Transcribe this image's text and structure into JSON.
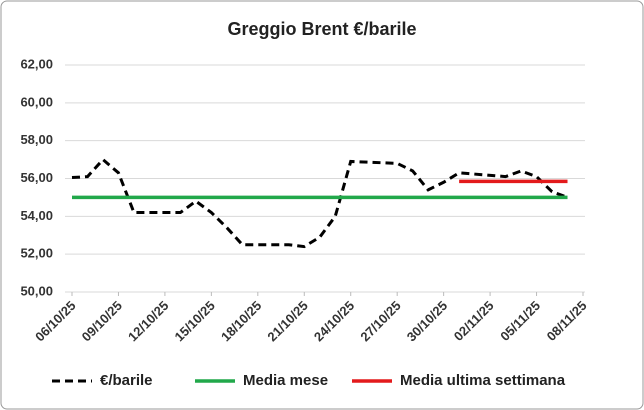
{
  "chart_data": {
    "type": "line",
    "title": "Greggio Brent €/barile",
    "x": [
      "06/10/25",
      "07/10/25",
      "08/10/25",
      "09/10/25",
      "10/10/25",
      "13/10/25",
      "14/10/25",
      "15/10/25",
      "16/10/25",
      "17/10/25",
      "20/10/25",
      "21/10/25",
      "22/10/25",
      "23/10/25",
      "24/10/25",
      "27/10/25",
      "28/10/25",
      "29/10/25",
      "30/10/25",
      "31/10/25",
      "03/11/25",
      "04/11/25",
      "05/11/25",
      "06/11/25",
      "07/11/25"
    ],
    "series": [
      {
        "name": "€/barile",
        "color": "#000000",
        "dashed": true,
        "values": [
          56.05,
          56.1,
          57.0,
          56.3,
          54.2,
          54.2,
          54.8,
          54.2,
          53.4,
          52.5,
          52.5,
          52.4,
          52.9,
          54.0,
          56.9,
          56.8,
          56.4,
          55.4,
          55.8,
          56.3,
          56.1,
          56.4,
          56.1,
          55.3,
          55.0
        ]
      },
      {
        "name": "Media mese",
        "color": "#21a84a",
        "values": [
          55.0,
          55.0,
          55.0,
          55.0,
          55.0,
          55.0,
          55.0,
          55.0,
          55.0,
          55.0,
          55.0,
          55.0,
          55.0,
          55.0,
          55.0,
          55.0,
          55.0,
          55.0,
          55.0,
          55.0,
          55.0,
          55.0,
          55.0,
          55.0,
          55.0
        ]
      },
      {
        "name": "Media ultima settimana",
        "color": "#e31a1c",
        "values": [
          null,
          null,
          null,
          null,
          null,
          null,
          null,
          null,
          null,
          null,
          null,
          null,
          null,
          null,
          null,
          null,
          null,
          null,
          null,
          55.85,
          55.85,
          55.85,
          55.85,
          55.85,
          55.85
        ]
      }
    ],
    "ylim": [
      50,
      62
    ],
    "yticks": [
      {
        "value": 50,
        "label": "50,00"
      },
      {
        "value": 52,
        "label": "52,00"
      },
      {
        "value": 54,
        "label": "54,00"
      },
      {
        "value": 56,
        "label": "56,00"
      },
      {
        "value": 58,
        "label": "58,00"
      },
      {
        "value": 60,
        "label": "60,00"
      },
      {
        "value": 62,
        "label": "62,00"
      }
    ],
    "xticks": [
      "06/10/25",
      "09/10/25",
      "12/10/25",
      "15/10/25",
      "18/10/25",
      "21/10/25",
      "24/10/25",
      "27/10/25",
      "30/10/25",
      "02/11/25",
      "05/11/25",
      "08/11/25"
    ],
    "grid": true,
    "legend": "bottom"
  }
}
